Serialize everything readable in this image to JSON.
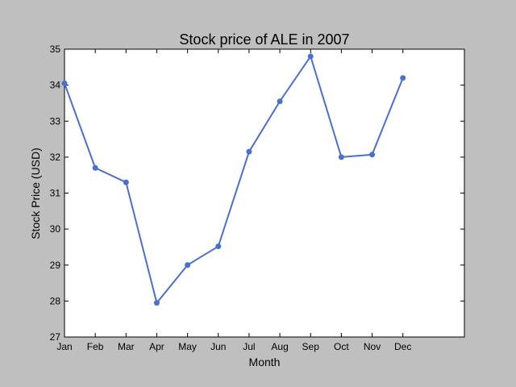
{
  "chart_data": {
    "type": "line",
    "title": "Stock price of ALE in 2007",
    "xlabel": "Month",
    "ylabel": "Stock Price (USD)",
    "categories": [
      "Jan",
      "Feb",
      "Mar",
      "Apr",
      "May",
      "Jun",
      "Jul",
      "Aug",
      "Sep",
      "Oct",
      "Nov",
      "Dec"
    ],
    "x_ticks": [
      "Jan",
      "Feb",
      "Mar",
      "Apr",
      "May",
      "Jun",
      "Jul",
      "Aug",
      "Sep",
      "Oct",
      "Nov",
      "Dec"
    ],
    "y_ticks": [
      "27",
      "28",
      "29",
      "30",
      "31",
      "32",
      "33",
      "34",
      "35"
    ],
    "series": [
      {
        "values": [
          34.05,
          31.7,
          31.3,
          27.95,
          29.0,
          29.52,
          32.15,
          33.55,
          34.8,
          32.0,
          32.07,
          34.2
        ],
        "color": "#4a6fd0"
      }
    ],
    "ylim": [
      27,
      35
    ],
    "grid": false,
    "legend": "none",
    "background": "#bfbfbf",
    "plot_background": "#ffffff"
  }
}
